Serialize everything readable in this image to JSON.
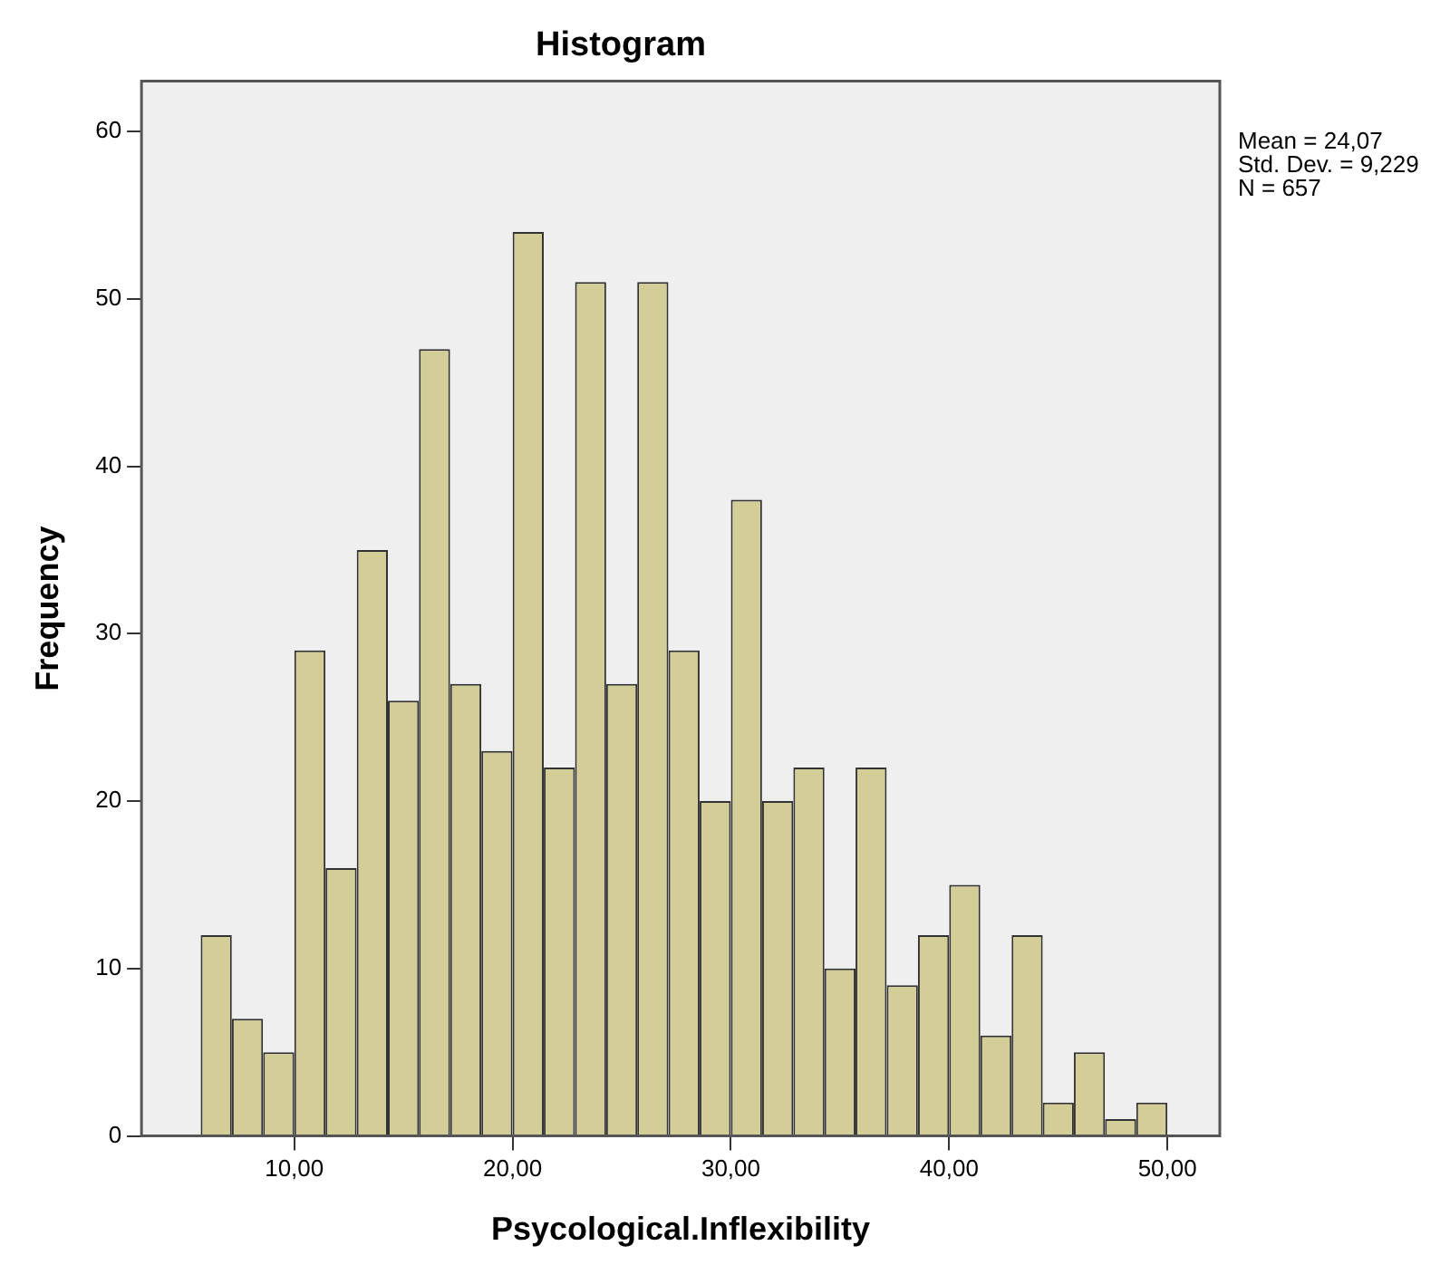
{
  "chart_data": {
    "type": "histogram",
    "title": "Histogram",
    "xlabel": "Psycological.Inflexibility",
    "ylabel": "Frequency",
    "bins": [
      5.71,
      7.14,
      8.57,
      10,
      11.43,
      12.86,
      14.29,
      15.71,
      17.14,
      18.57,
      20,
      21.43,
      22.86,
      24.29,
      25.71,
      27.14,
      28.57,
      30,
      31.43,
      32.86,
      34.29,
      35.71,
      37.14,
      38.57,
      40,
      41.43,
      42.86,
      44.29,
      45.71,
      47.14,
      48.57,
      50
    ],
    "values": [
      12,
      7,
      5,
      29,
      16,
      35,
      26,
      47,
      27,
      23,
      54,
      22,
      51,
      27,
      51,
      29,
      20,
      38,
      20,
      22,
      10,
      22,
      9,
      12,
      15,
      6,
      12,
      2,
      5,
      1,
      2
    ],
    "color": "#d3ce97",
    "xlim": [
      3,
      52.4
    ],
    "xticks": [
      {
        "value": 10,
        "label": "10,00"
      },
      {
        "value": 20,
        "label": "20,00"
      },
      {
        "value": 30,
        "label": "30,00"
      },
      {
        "value": 40,
        "label": "40,00"
      },
      {
        "value": 50,
        "label": "50,00"
      }
    ],
    "ylim": [
      0,
      63
    ],
    "yticks": [
      0,
      10,
      20,
      30,
      40,
      50,
      60
    ],
    "grid": false,
    "legend": false,
    "annotations": [
      "Mean = 24,07",
      "Std. Dev. = 9,229",
      "N = 657"
    ]
  }
}
